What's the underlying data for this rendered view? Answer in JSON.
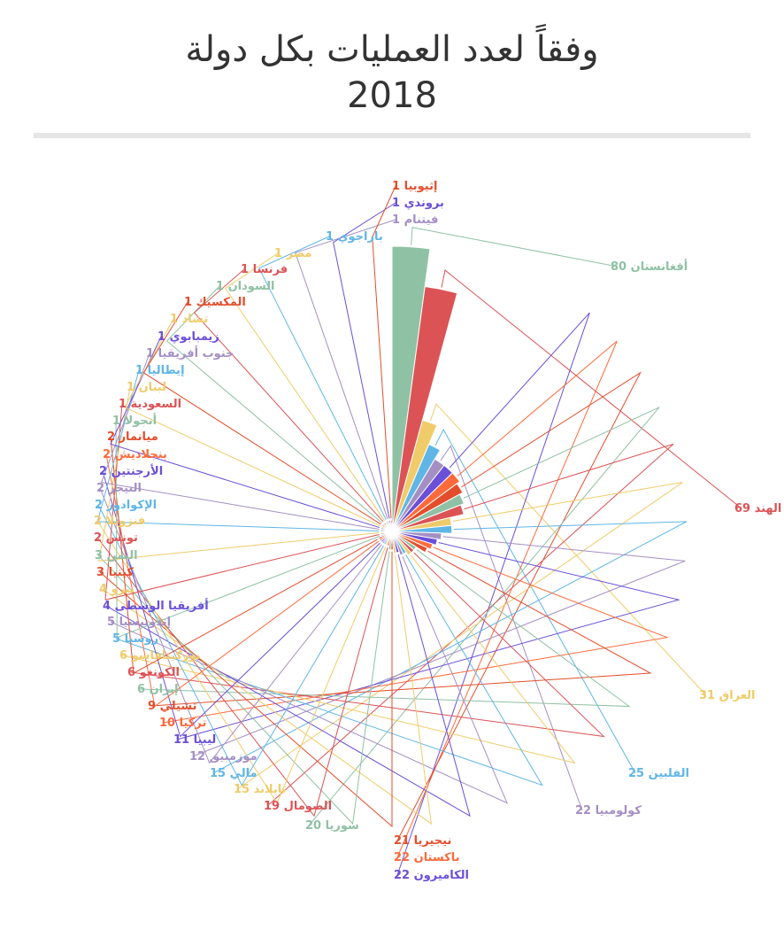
{
  "chart_data": {
    "type": "pie",
    "variant": "polar-area",
    "title": "وفقاً لعدد العمليات بكل دولة",
    "subtitle": "2018",
    "categories": [
      "أفغانستان",
      "الهند",
      "العراق",
      "الفلبين",
      "كولومبيا",
      "الكاميرون",
      "باكستان",
      "نيجيريا",
      "سوريا",
      "الصومال",
      "تايلاند",
      "مالي",
      "موزمبيق",
      "ليبيا",
      "تركيا",
      "تشيلي",
      "إيران",
      "الكونغو",
      "بوركينافاسو",
      "روسيا",
      "إندونيسيا",
      "أفريقيا الوسطى",
      "بيرو",
      "كينيا",
      "اليمن",
      "تونس",
      "فنزويلا",
      "الإكوادور",
      "النيجر",
      "الأرجنتين",
      "بنجلاديش",
      "ميانمار",
      "أنجولا",
      "السعودية",
      "لبنان",
      "إيطاليا",
      "جنوب أفريقيا",
      "زيمبابوي",
      "تشاد",
      "المكسيك",
      "السودان",
      "فرنسا",
      "مصر",
      "باراجوي",
      "فيتنام",
      "بروندي",
      "إثيوبيا"
    ],
    "values": [
      80,
      69,
      31,
      25,
      22,
      22,
      22,
      21,
      20,
      19,
      15,
      15,
      12,
      11,
      10,
      9,
      6,
      6,
      6,
      5,
      5,
      4,
      4,
      3,
      3,
      2,
      2,
      2,
      2,
      2,
      2,
      2,
      1,
      1,
      1,
      1,
      1,
      1,
      1,
      1,
      1,
      1,
      1,
      1,
      1,
      1,
      1
    ],
    "colors": [
      "#8fc1a4",
      "#dc5356",
      "#f0cb69",
      "#5fb6e6",
      "#a48fc4",
      "#6a4fd9",
      "#ff6a3a",
      "#e44d2b",
      "#8fc1a4",
      "#dc5356",
      "#f0cb69",
      "#5fb6e6",
      "#a48fc4",
      "#6a4fd9",
      "#ff6a3a",
      "#e44d2b",
      "#8fc1a4",
      "#dc5356",
      "#f0cb69",
      "#5fb6e6",
      "#a48fc4",
      "#6a4fd9",
      "#f0cb69",
      "#e44d2b",
      "#8fc1a4",
      "#dc5356",
      "#f0cb69",
      "#5fb6e6",
      "#a48fc4",
      "#6a4fd9",
      "#ff6a3a",
      "#e44d2b",
      "#8fc1a4",
      "#dc5356",
      "#f0cb69",
      "#5fb6e6",
      "#a48fc4",
      "#6a4fd9",
      "#f0cb69",
      "#e44d2b",
      "#8fc1a4",
      "#dc5356",
      "#f0cb69",
      "#5fb6e6",
      "#a48fc4",
      "#6a4fd9",
      "#e44d2b"
    ],
    "legend": "none",
    "data_labels": "outside-with-leaders"
  }
}
